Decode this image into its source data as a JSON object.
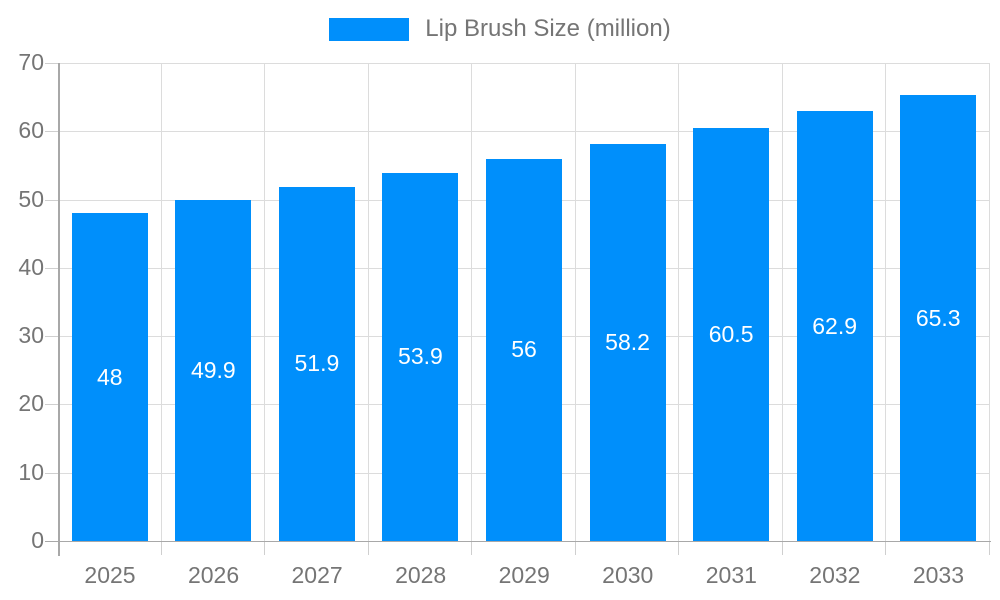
{
  "chart_data": {
    "type": "bar",
    "title": "Lip Brush Size (million)",
    "categories": [
      "2025",
      "2026",
      "2027",
      "2028",
      "2029",
      "2030",
      "2031",
      "2032",
      "2033"
    ],
    "series": [
      {
        "name": "Lip Brush Size (million)",
        "values": [
          48,
          49.9,
          51.9,
          53.9,
          56,
          58.2,
          60.5,
          62.9,
          65.3
        ]
      }
    ],
    "value_labels": [
      "48",
      "49.9",
      "51.9",
      "53.9",
      "56",
      "58.2",
      "60.5",
      "62.9",
      "65.3"
    ],
    "xlabel": "",
    "ylabel": "",
    "ylim": [
      0,
      70
    ],
    "y_ticks": [
      0,
      10,
      20,
      30,
      40,
      50,
      60,
      70
    ],
    "grid": true,
    "legend_position": "top",
    "colors": {
      "bar": "#008FFB",
      "grid_line": "#dcdcdc",
      "axis_line": "#a8a8a8",
      "tick_mark": "#cfcfcf",
      "tick_label": "#757575",
      "legend_text": "#757575",
      "bar_label": "#ffffff",
      "background": "#ffffff"
    }
  }
}
